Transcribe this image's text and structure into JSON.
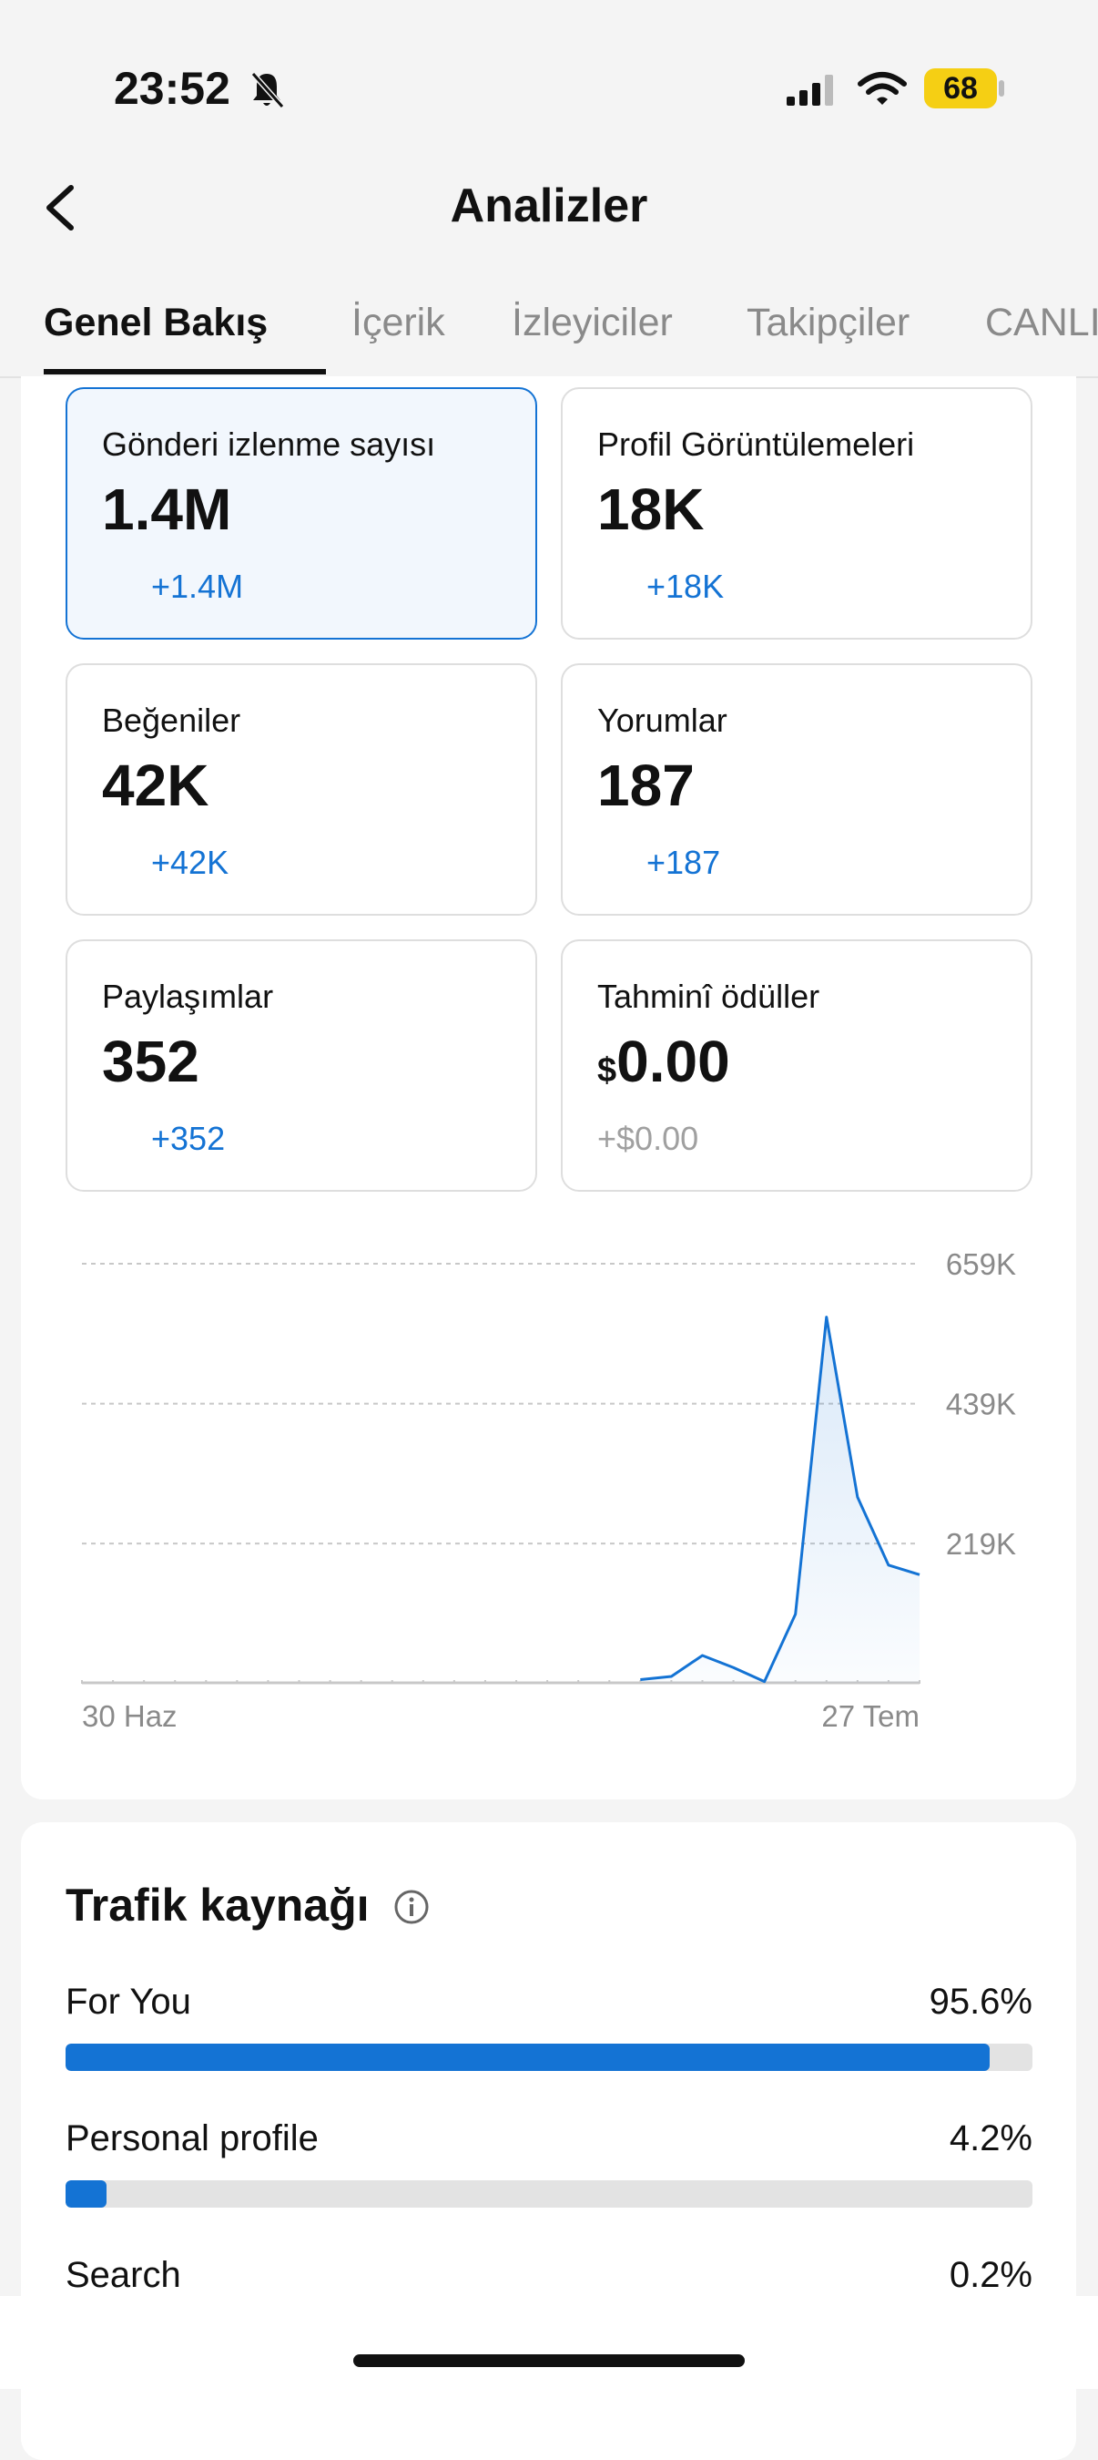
{
  "status_bar": {
    "time": "23:52",
    "battery": "68"
  },
  "header": {
    "title": "Analizler"
  },
  "tabs": [
    "Genel Bakış",
    "İçerik",
    "İzleyiciler",
    "Takipçiler",
    "CANLI"
  ],
  "cards": [
    {
      "label": "Gönderi izlenme sayısı",
      "value": "1.4M",
      "change": "+1.4M"
    },
    {
      "label": "Profil Görüntülemeleri",
      "value": "18K",
      "change": "+18K"
    },
    {
      "label": "Beğeniler",
      "value": "42K",
      "change": "+42K"
    },
    {
      "label": "Yorumlar",
      "value": "187",
      "change": "+187"
    },
    {
      "label": "Paylaşımlar",
      "value": "352",
      "change": "+352"
    },
    {
      "label": "Tahminî ödüller",
      "currency": "$",
      "value": "0.00",
      "change": "+$0.00"
    }
  ],
  "chart_data": [
    {
      "type": "line",
      "color": "#1473d4",
      "categories": [
        "30 Haz",
        null,
        null,
        null,
        null,
        null,
        null,
        null,
        null,
        null,
        null,
        null,
        null,
        null,
        null,
        null,
        null,
        null,
        null,
        null,
        null,
        null,
        null,
        null,
        null,
        null,
        null,
        "27 Tem"
      ],
      "values": [
        null,
        null,
        null,
        null,
        null,
        null,
        null,
        null,
        null,
        null,
        null,
        null,
        null,
        null,
        null,
        null,
        null,
        null,
        5000,
        10000,
        43000,
        24000,
        2000,
        108000,
        575000,
        292000,
        185000,
        170000
      ],
      "ylim": [
        0,
        659000
      ],
      "yticks": [
        {
          "value": 659000,
          "label": "659K"
        },
        {
          "value": 439000,
          "label": "439K"
        },
        {
          "value": 219000,
          "label": "219K"
        }
      ],
      "grid": true
    },
    {
      "type": "bar",
      "orientation": "horizontal",
      "title": "Trafik kaynağı",
      "color": "#1473d4",
      "categories": [
        "For You",
        "Personal profile",
        "Search"
      ],
      "values": [
        95.6,
        4.2,
        0.2
      ],
      "value_labels": [
        "95.6%",
        "4.2%",
        "0.2%"
      ],
      "xlim": [
        0,
        100
      ]
    }
  ]
}
